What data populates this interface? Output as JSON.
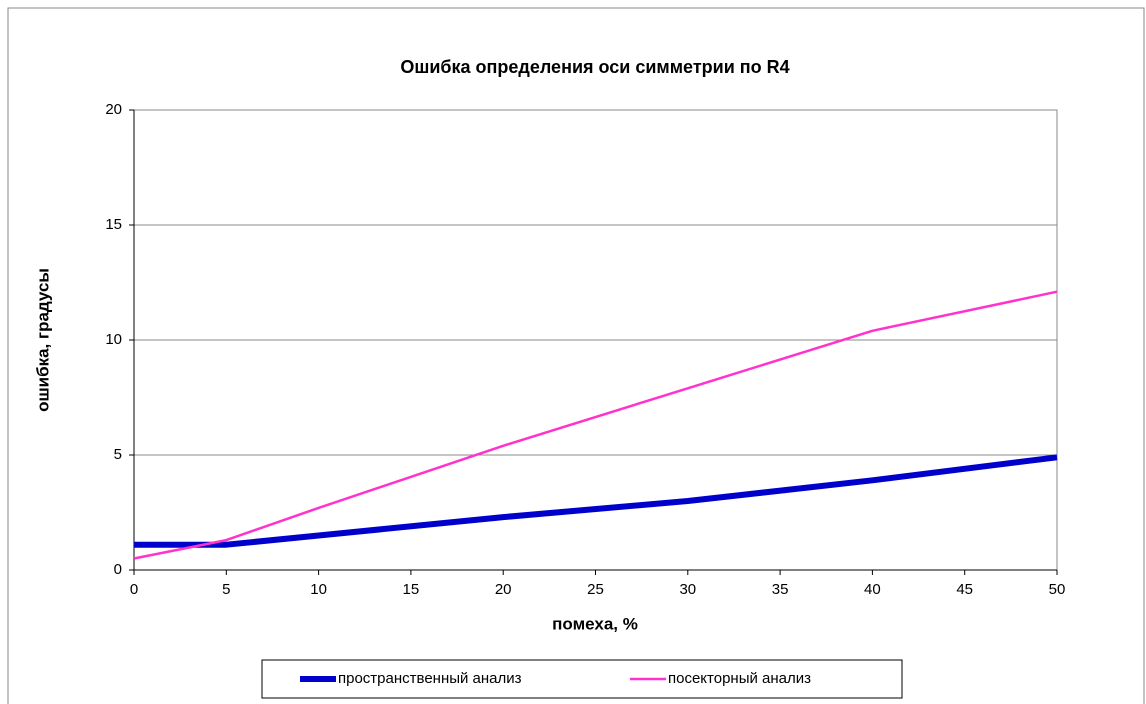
{
  "chart_data": {
    "type": "line",
    "title": "Ошибка определения оси симметрии по R4",
    "x_label": "помеха, %",
    "y_label": "ошибка, градусы",
    "x": [
      0,
      5,
      10,
      20,
      30,
      40,
      50
    ],
    "series": [
      {
        "name": "пространственный анализ",
        "color": "#0000cc",
        "values": [
          1.1,
          1.1,
          1.5,
          2.3,
          3.0,
          3.9,
          4.9
        ]
      },
      {
        "name": "посекторный анализ",
        "color": "#ff33cc",
        "values": [
          0.5,
          1.3,
          2.7,
          5.4,
          7.9,
          10.4,
          12.1
        ]
      }
    ],
    "xlim": [
      0,
      50
    ],
    "xticks": [
      0,
      5,
      10,
      15,
      20,
      25,
      30,
      35,
      40,
      45,
      50
    ],
    "ylim": [
      0,
      20
    ],
    "yticks": [
      0,
      5,
      10,
      15,
      20
    ],
    "grid": true,
    "legend": "bottom"
  }
}
